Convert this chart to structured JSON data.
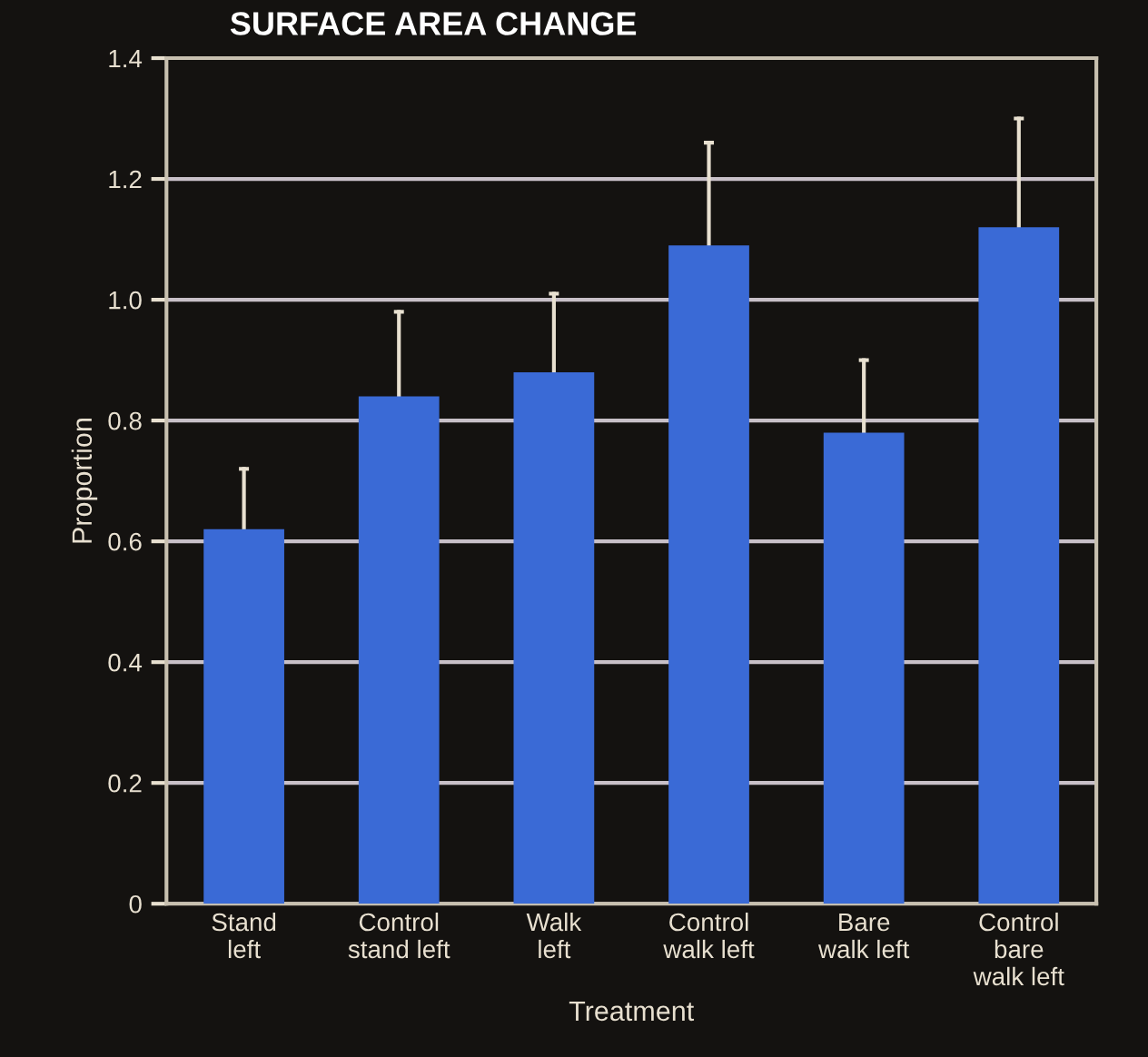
{
  "chart_data": {
    "type": "bar",
    "title": "SURFACE AREA CHANGE",
    "xlabel": "Treatment",
    "ylabel": "Proportion",
    "categories": [
      "Stand\nleft",
      "Control\nstand left",
      "Walk\nleft",
      "Control\nwalk left",
      "Bare\nwalk left",
      "Control\nbare\nwalk left"
    ],
    "values": [
      0.62,
      0.84,
      0.88,
      1.09,
      0.78,
      1.12
    ],
    "errors": [
      [
        0.62,
        0.72
      ],
      [
        0.84,
        0.98
      ],
      [
        0.88,
        1.01
      ],
      [
        1.09,
        1.26
      ],
      [
        0.78,
        0.9
      ],
      [
        1.12,
        1.3
      ]
    ],
    "color": "#3a6ad6",
    "ylim": [
      0,
      1.4
    ],
    "yticks": [
      0,
      {
        "value": 0.2,
        "label": "0.2"
      },
      {
        "value": 0.4,
        "label": "0.4"
      },
      {
        "value": 0.6,
        "label": "0.6"
      },
      {
        "value": 0.8,
        "label": "0.8"
      },
      {
        "value": 1.0,
        "label": "1.0"
      },
      {
        "value": 1.2,
        "label": "1.2"
      },
      {
        "value": 1.4,
        "label": "1.4"
      }
    ],
    "grid": "y"
  }
}
